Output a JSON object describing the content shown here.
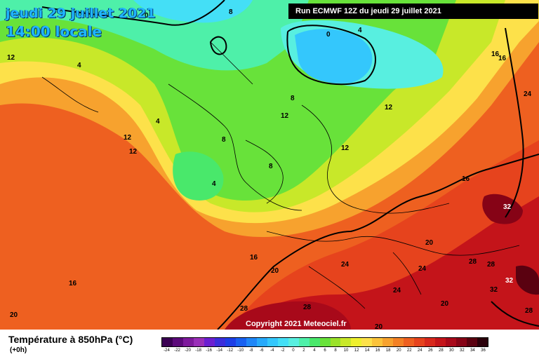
{
  "header": {
    "date": "jeudi 29 juillet 2021",
    "time": "14:00 locale",
    "run": "Run ECMWF 12Z du jeudi 29 juillet 2021"
  },
  "map": {
    "copyright": "Copyright 2021 Meteociel.fr",
    "isotherm_labels": [
      "0",
      "4",
      "8",
      "12",
      "16",
      "20",
      "24",
      "28",
      "32"
    ]
  },
  "footer": {
    "variable": "Température à 850hPa (°C)",
    "step": "(+0h)"
  },
  "legend": {
    "ticks": [
      "-24",
      "-22",
      "-20",
      "-18",
      "-16",
      "-14",
      "-12",
      "-10",
      "-8",
      "-6",
      "-4",
      "-2",
      "0",
      "2",
      "4",
      "6",
      "8",
      "10",
      "12",
      "14",
      "16",
      "18",
      "20",
      "22",
      "24",
      "26",
      "28",
      "30",
      "32",
      "34",
      "36"
    ],
    "colors": [
      "#3a0052",
      "#5c0a7a",
      "#7e1a9c",
      "#9a2fb8",
      "#6b1fd0",
      "#3b2ddb",
      "#1d3ee6",
      "#1860f0",
      "#1f86f7",
      "#27a9fb",
      "#34c7fc",
      "#44dff6",
      "#58efe0",
      "#4ef0a9",
      "#49e86b",
      "#68e23a",
      "#9ae22a",
      "#c8e829",
      "#eef02e",
      "#fde14a",
      "#fbc33a",
      "#f7a22e",
      "#f38125",
      "#ee6020",
      "#e6431d",
      "#d8281c",
      "#c4141a",
      "#a8091a",
      "#860316",
      "#5a0110",
      "#2a000a"
    ]
  }
}
